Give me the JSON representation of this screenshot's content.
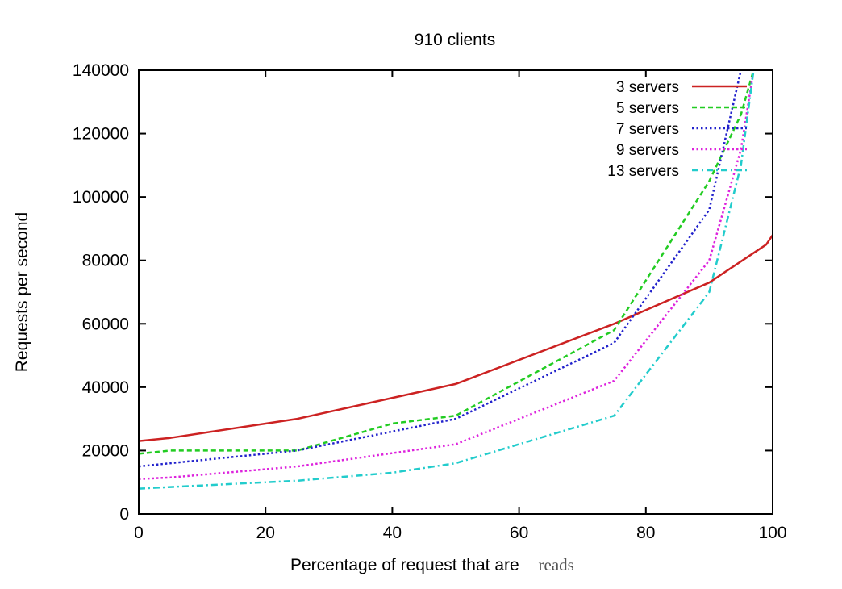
{
  "chart_data": {
    "type": "line",
    "title": "910 clients",
    "xlabel": "Percentage of request that are",
    "xlabel_suffix": "reads",
    "ylabel": "Requests per second",
    "xlim": [
      0,
      100
    ],
    "ylim": [
      0,
      140000
    ],
    "xticks": [
      0,
      20,
      40,
      60,
      80,
      100
    ],
    "yticks": [
      0,
      20000,
      40000,
      60000,
      80000,
      100000,
      120000,
      140000
    ],
    "grid": false,
    "legend_position": "top-right",
    "series": [
      {
        "name": "3 servers",
        "color": "#cc2222",
        "dash": "solid",
        "x": [
          0,
          5,
          25,
          50,
          75,
          90,
          99,
          100
        ],
        "y": [
          23000,
          24000,
          30000,
          41000,
          60000,
          73000,
          85000,
          88000
        ]
      },
      {
        "name": "5 servers",
        "color": "#22cc22",
        "dash": "dashed",
        "x": [
          0,
          5,
          25,
          40,
          50,
          75,
          90,
          95,
          97
        ],
        "y": [
          19000,
          20000,
          20000,
          28500,
          31000,
          58000,
          105000,
          126000,
          140000
        ]
      },
      {
        "name": "7 servers",
        "color": "#2222cc",
        "dash": "dotted",
        "x": [
          0,
          5,
          25,
          50,
          75,
          90,
          95
        ],
        "y": [
          15000,
          16000,
          20000,
          30000,
          54000,
          96000,
          140000
        ]
      },
      {
        "name": "9 servers",
        "color": "#dd22dd",
        "dash": "dotted",
        "x": [
          0,
          5,
          25,
          50,
          75,
          90,
          95,
          97
        ],
        "y": [
          11000,
          11500,
          15000,
          22000,
          42000,
          80000,
          115000,
          140000
        ]
      },
      {
        "name": "13 servers",
        "color": "#22cccc",
        "dash": "dashdot",
        "x": [
          0,
          5,
          25,
          40,
          50,
          75,
          90,
          95,
          97
        ],
        "y": [
          8000,
          8500,
          10500,
          13000,
          16000,
          31000,
          70000,
          110000,
          140000
        ]
      }
    ]
  }
}
